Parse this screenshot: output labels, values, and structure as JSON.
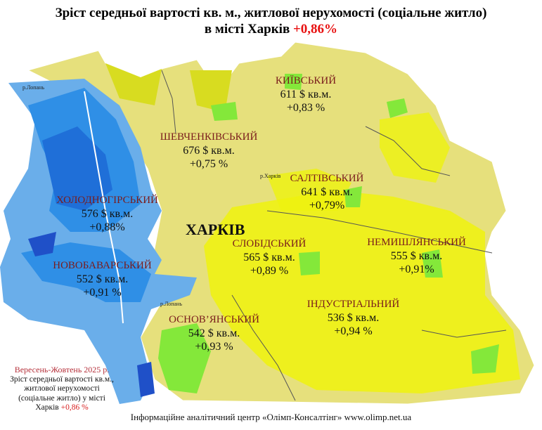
{
  "title": {
    "line1": "Зріст середньої вартості кв. м., житлової нерухомості (соціальне житло)",
    "line2": "в місті Харків",
    "change": "+0,86%"
  },
  "city_label": "ХАРКІВ",
  "rivers": [
    "р.Лопань",
    "р.Харків",
    "р.Лопань"
  ],
  "districts": [
    {
      "name": "КИЇВСЬКИЙ",
      "price": "611 $ кв.м.",
      "change": "+0,83 %"
    },
    {
      "name": "ШЕВЧЕНКІВСЬКИЙ",
      "price": "676 $ кв.м.",
      "change": "+0,75 %"
    },
    {
      "name": "САЛТІВСЬКИЙ",
      "price": "641 $ кв.м.",
      "change": "+0,79%"
    },
    {
      "name": "ХОЛОДНОГІРСЬКИЙ",
      "price": "576 $ кв.м.",
      "change": "+0,88%"
    },
    {
      "name": "СЛОБІДСЬКИЙ",
      "price": "565 $ кв.м.",
      "change": "+0,89 %"
    },
    {
      "name": "НЕМИШЛЯНСЬКИЙ",
      "price": "555 $ кв.м.",
      "change": "+0,91%"
    },
    {
      "name": "НОВОБАВАРСЬКИЙ",
      "price": "552 $ кв.м.",
      "change": "+0,91 %"
    },
    {
      "name": "ІНДУСТРІАЛЬНИЙ",
      "price": "536 $ кв.м.",
      "change": "+0,94 %"
    },
    {
      "name": "ОСНОВ’ЯНСЬКИЙ",
      "price": "542 $ кв.м.",
      "change": "+0,93 %"
    }
  ],
  "note": {
    "period": "Вересень-Жовтень 2025 р.",
    "text": "Зріст середньої вартості кв.м., житлової нерухомості (соціальне житло) у місті Харків",
    "change": "+0,86 %"
  },
  "footer": "Інформаційне аналітичний центр «Олімп-Консалтінг» www.olimp.net.ua",
  "colors": {
    "base": "#e5e07c",
    "bright": "#eef20e",
    "green": "#84e83a",
    "blue_dark": "#1f6fd8",
    "blue_mid": "#2f8fe6",
    "blue_light": "#6aaeea",
    "accent": "#e81010"
  }
}
